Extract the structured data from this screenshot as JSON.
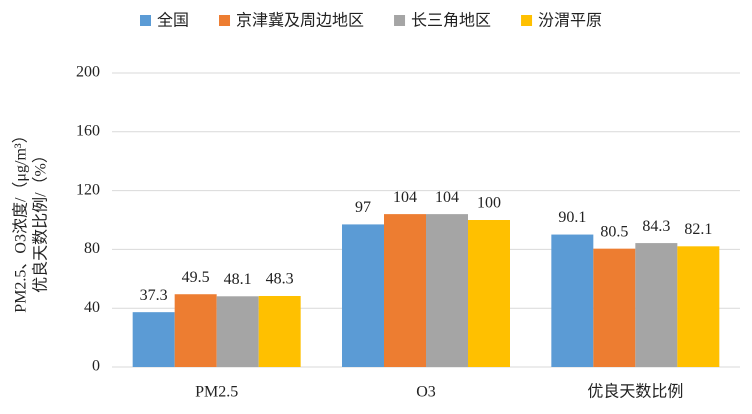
{
  "chart_data": {
    "type": "bar",
    "categories": [
      "PM2.5",
      "O3",
      "优良天数比例"
    ],
    "series": [
      {
        "name": "全国",
        "color": "#5b9bd5",
        "values": [
          37.3,
          97,
          90.1
        ]
      },
      {
        "name": "京津冀及周边地区",
        "color": "#ed7d31",
        "values": [
          49.5,
          104,
          80.5
        ]
      },
      {
        "name": "长三角地区",
        "color": "#a5a5a5",
        "values": [
          48.1,
          104,
          84.3
        ]
      },
      {
        "name": "汾渭平原",
        "color": "#ffc000",
        "values": [
          48.3,
          100,
          82.1
        ]
      }
    ],
    "y_label": [
      "PM2.5、O3浓度/（μg/m³）",
      "优良天数比例/（%）"
    ],
    "ylim": [
      0,
      200
    ],
    "yticks": [
      0,
      40,
      80,
      120,
      160,
      200
    ],
    "grid": true,
    "legend": "top"
  }
}
